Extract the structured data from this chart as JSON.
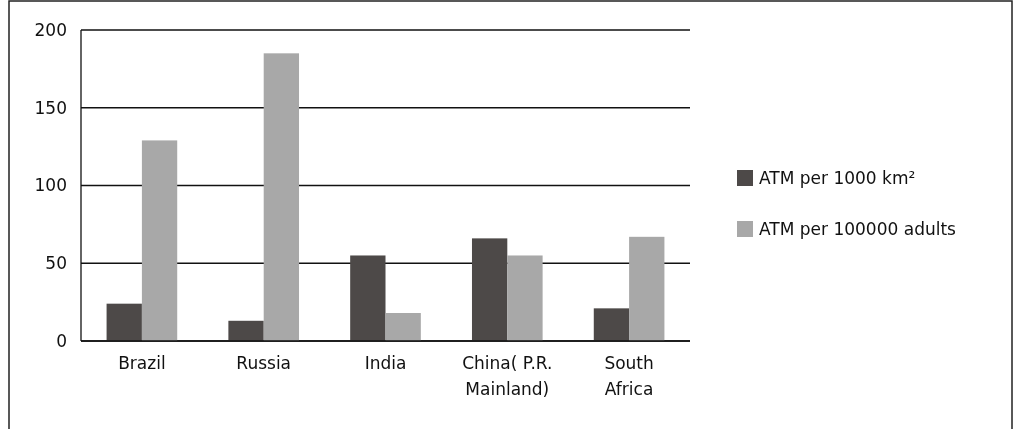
{
  "chart_data": {
    "type": "bar",
    "categories": [
      "Brazil",
      "Russia",
      "India",
      "China( P.R. Mainland)",
      "South Africa"
    ],
    "series": [
      {
        "name": "ATM per 1000 km²",
        "color": "#4d4948",
        "values": [
          24,
          13,
          55,
          66,
          21
        ]
      },
      {
        "name": "ATM per 100000 adults",
        "color": "#a8a8a8",
        "values": [
          129,
          185,
          18,
          55,
          67
        ]
      }
    ],
    "ylim": [
      0,
      200
    ],
    "yticks": [
      0,
      50,
      100,
      150,
      200
    ],
    "grid": "y",
    "legend": "right"
  }
}
